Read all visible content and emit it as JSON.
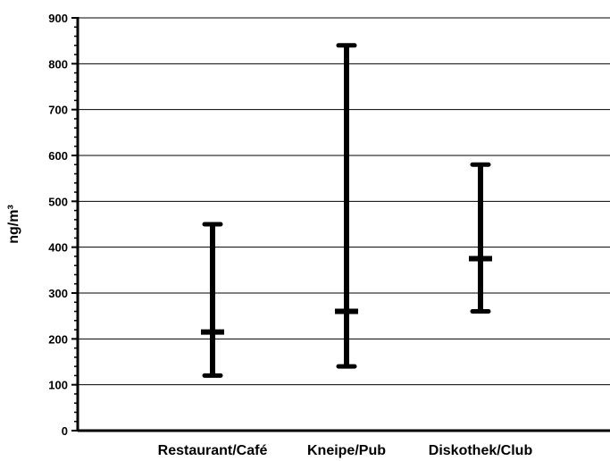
{
  "chart_data": {
    "type": "range",
    "title": "",
    "ylabel": "ng/m³",
    "xlabel": "",
    "ylim": [
      0,
      900
    ],
    "yticks": [
      0,
      100,
      200,
      300,
      400,
      500,
      600,
      700,
      800,
      900
    ],
    "ytick_labels": [
      "0",
      "100",
      "200",
      "300",
      "400",
      "500",
      "600",
      "700",
      "800",
      "900"
    ],
    "grid": true,
    "categories": [
      "Restaurant/Café",
      "Kneipe/Pub",
      "Diskothek/Club"
    ],
    "series": [
      {
        "min": [
          120,
          140,
          260
        ],
        "median": [
          215,
          260,
          375
        ],
        "max": [
          450,
          840,
          580
        ]
      }
    ]
  }
}
